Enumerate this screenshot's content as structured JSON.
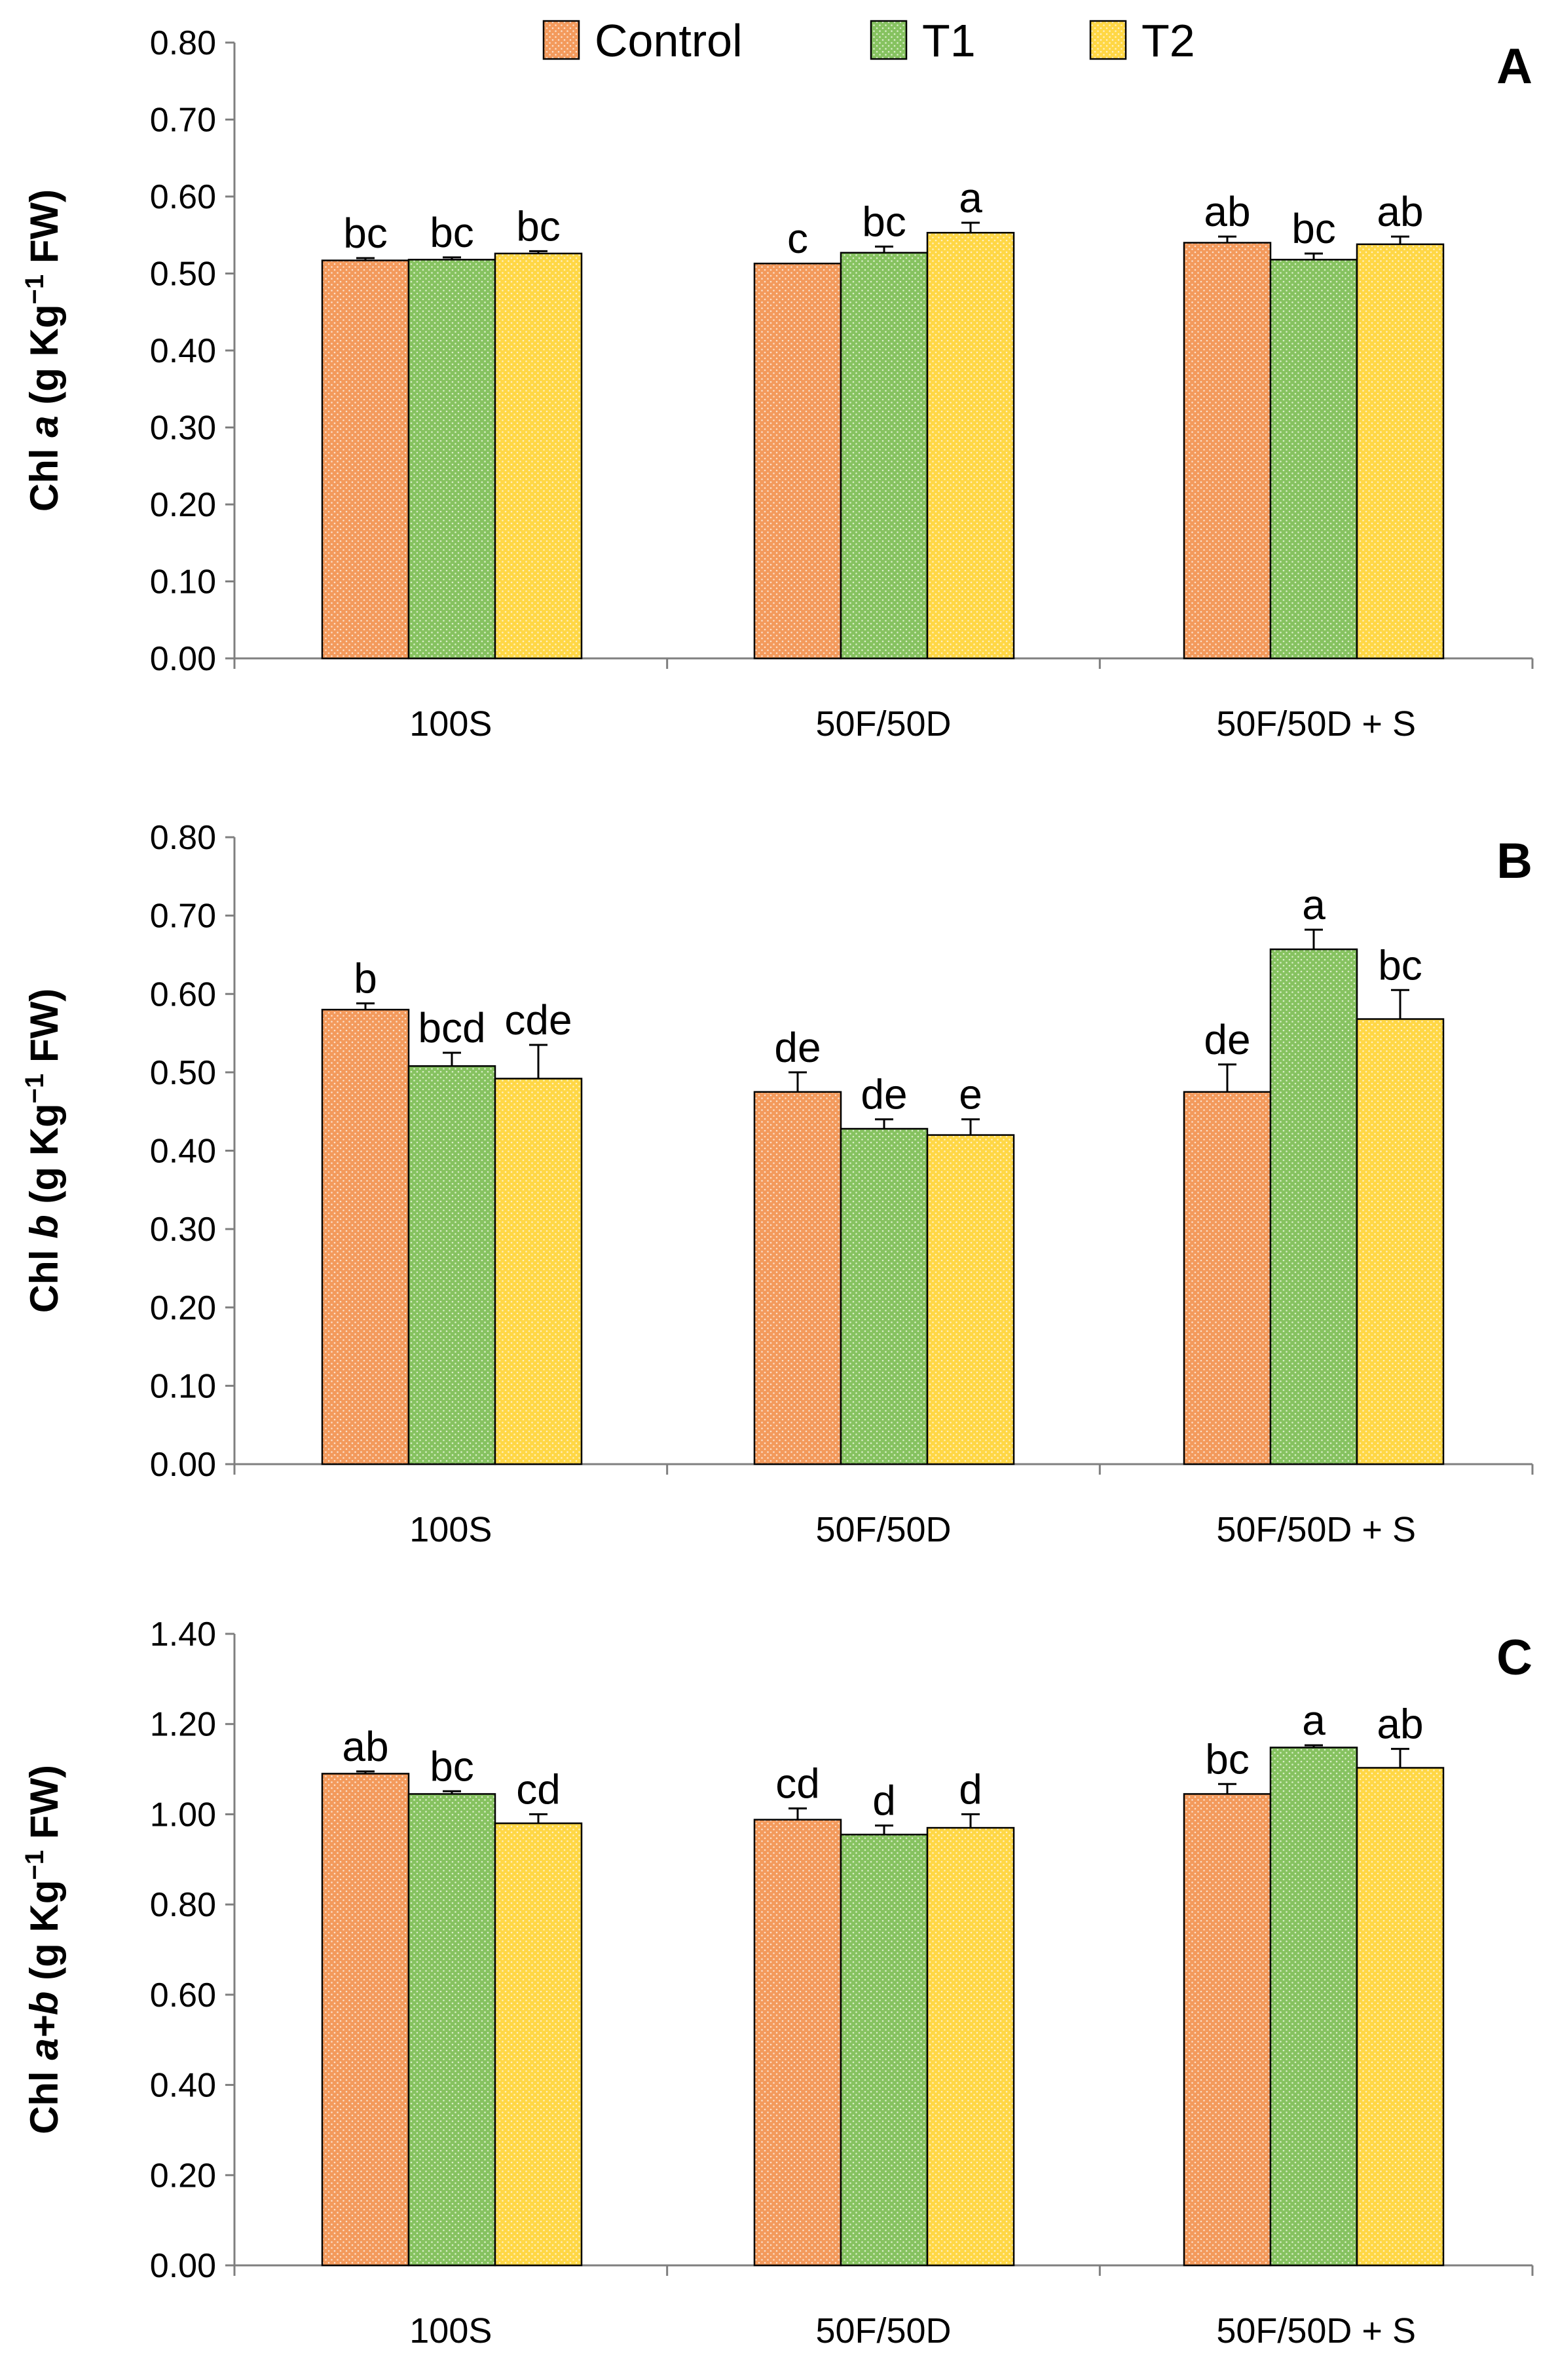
{
  "colors": {
    "Control": "#f39a5c",
    "T1": "#86c260",
    "T2": "#ffd745",
    "Control_dot": "#fbe0cc",
    "T1_dot": "#dbefcb",
    "T2_dot": "#fff1c4",
    "axis": "#7f7f7f"
  },
  "legend": [
    {
      "name": "Control",
      "label": "Control"
    },
    {
      "name": "T1",
      "label": "T1"
    },
    {
      "name": "T2",
      "label": "T2"
    }
  ],
  "chart_data": [
    {
      "type": "bar",
      "panel": "A",
      "ylabel_prefix": "Chl ",
      "ylabel_italic": "a",
      "ylabel_unit_pre": " (g Kg",
      "ylabel_sup": "−1",
      "ylabel_unit_post": " FW)",
      "ylim": [
        0,
        0.8
      ],
      "yticks": [
        "0.00",
        "0.10",
        "0.20",
        "0.30",
        "0.40",
        "0.50",
        "0.60",
        "0.70",
        "0.80"
      ],
      "categories": [
        "100S",
        "50F/50D",
        "50F/50D + S"
      ],
      "series": [
        {
          "name": "Control",
          "values": [
            0.517,
            0.513,
            0.54
          ],
          "errors": [
            0.003,
            0.0,
            0.008
          ],
          "labels": [
            "bc",
            "c",
            "ab"
          ]
        },
        {
          "name": "T1",
          "values": [
            0.518,
            0.527,
            0.518
          ],
          "errors": [
            0.003,
            0.008,
            0.008
          ],
          "labels": [
            "bc",
            "bc",
            "bc"
          ]
        },
        {
          "name": "T2",
          "values": [
            0.526,
            0.553,
            0.538
          ],
          "errors": [
            0.003,
            0.013,
            0.01
          ],
          "labels": [
            "bc",
            "a",
            "ab"
          ]
        }
      ]
    },
    {
      "type": "bar",
      "panel": "B",
      "ylabel_prefix": "Chl ",
      "ylabel_italic": "b",
      "ylabel_unit_pre": " (g Kg",
      "ylabel_sup": "−1",
      "ylabel_unit_post": " FW)",
      "ylim": [
        0,
        0.8
      ],
      "yticks": [
        "0.00",
        "0.10",
        "0.20",
        "0.30",
        "0.40",
        "0.50",
        "0.60",
        "0.70",
        "0.80"
      ],
      "categories": [
        "100S",
        "50F/50D",
        "50F/50D + S"
      ],
      "series": [
        {
          "name": "Control",
          "values": [
            0.58,
            0.475,
            0.475
          ],
          "errors": [
            0.008,
            0.025,
            0.035
          ],
          "labels": [
            "b",
            "de",
            "de"
          ]
        },
        {
          "name": "T1",
          "values": [
            0.508,
            0.428,
            0.657
          ],
          "errors": [
            0.017,
            0.012,
            0.025
          ],
          "labels": [
            "bcd",
            "de",
            "a"
          ]
        },
        {
          "name": "T2",
          "values": [
            0.492,
            0.42,
            0.568
          ],
          "errors": [
            0.043,
            0.02,
            0.037
          ],
          "labels": [
            "cde",
            "e",
            "bc"
          ]
        }
      ]
    },
    {
      "type": "bar",
      "panel": "C",
      "ylabel_prefix": "Chl ",
      "ylabel_italic": "a+b",
      "ylabel_unit_pre": " (g Kg",
      "ylabel_sup": "−1",
      "ylabel_unit_post": " FW)",
      "ylim": [
        0,
        1.4
      ],
      "yticks": [
        "0.00",
        "0.20",
        "0.40",
        "0.60",
        "0.80",
        "1.00",
        "1.20",
        "1.40"
      ],
      "categories": [
        "100S",
        "50F/50D",
        "50F/50D + S"
      ],
      "series": [
        {
          "name": "Control",
          "values": [
            1.09,
            0.988,
            1.045
          ],
          "errors": [
            0.005,
            0.025,
            0.022
          ],
          "labels": [
            "ab",
            "cd",
            "bc"
          ]
        },
        {
          "name": "T1",
          "values": [
            1.045,
            0.955,
            1.148
          ],
          "errors": [
            0.006,
            0.02,
            0.005
          ],
          "labels": [
            "bc",
            "d",
            "a"
          ]
        },
        {
          "name": "T2",
          "values": [
            0.98,
            0.97,
            1.103
          ],
          "errors": [
            0.02,
            0.03,
            0.042
          ],
          "labels": [
            "cd",
            "d",
            "ab"
          ]
        }
      ]
    }
  ]
}
